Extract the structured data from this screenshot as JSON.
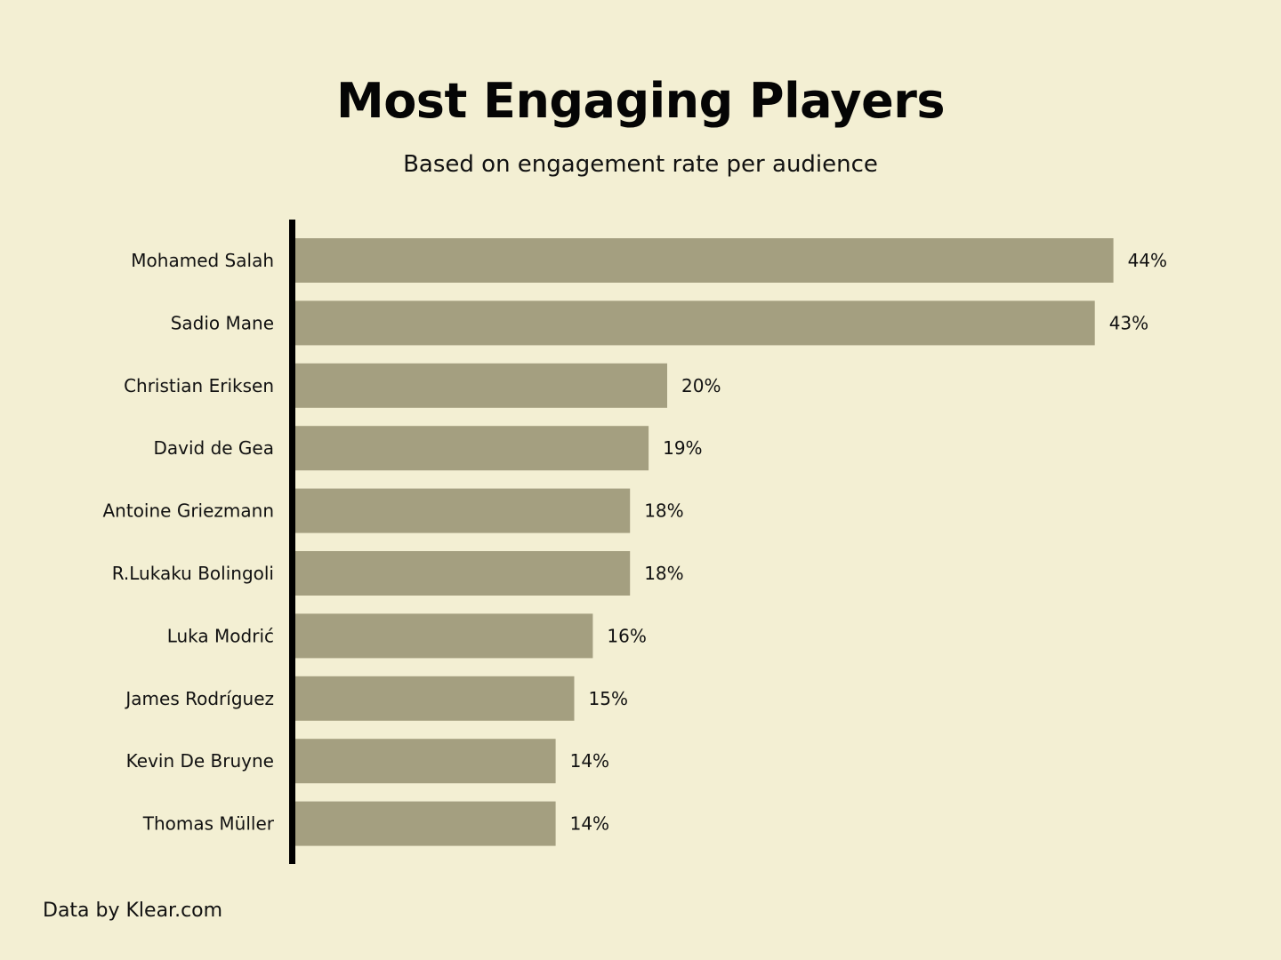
{
  "chart_data": {
    "type": "bar",
    "orientation": "horizontal",
    "title": "Most Engaging Players",
    "subtitle": "Based on engagement rate per audience",
    "categories": [
      "Mohamed Salah",
      "Sadio Mane",
      "Christian Eriksen",
      "David de Gea",
      "Antoine Griezmann",
      "R.Lukaku Bolingoli",
      "Luka Modrić",
      "James Rodríguez",
      "Kevin De Bruyne",
      "Thomas Müller"
    ],
    "values": [
      44,
      43,
      20,
      19,
      18,
      18,
      16,
      15,
      14,
      14
    ],
    "data_labels": [
      "44%",
      "43%",
      "20%",
      "19%",
      "18%",
      "18%",
      "16%",
      "15%",
      "14%",
      "14%"
    ],
    "unit": "%",
    "xlim": [
      0,
      48
    ],
    "grid": false,
    "legend": "none",
    "colors": {
      "bar": "#a49f80",
      "axis": "#000000",
      "background": "#f3efd3",
      "text": "#111111"
    }
  },
  "footer": {
    "source": "Data by Klear.com"
  }
}
